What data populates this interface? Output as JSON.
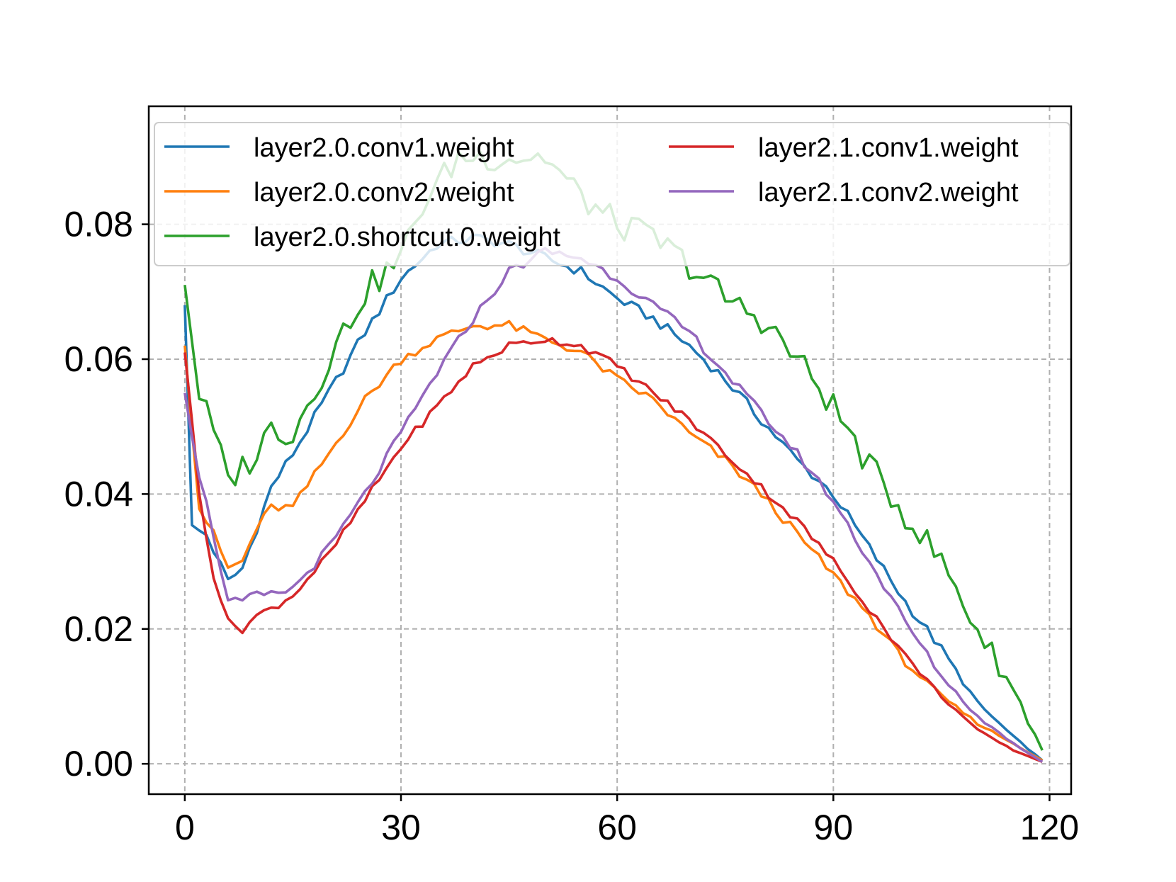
{
  "chart_data": {
    "type": "line",
    "title": "",
    "xlabel": "",
    "ylabel": "",
    "xlim": [
      -5,
      123
    ],
    "ylim": [
      -0.0045,
      0.0975
    ],
    "xticks": [
      0,
      30,
      60,
      90,
      120
    ],
    "yticks": [
      0.0,
      0.02,
      0.04,
      0.06,
      0.08
    ],
    "xtick_labels": [
      "0",
      "30",
      "60",
      "90",
      "120"
    ],
    "ytick_labels": [
      "0.00",
      "0.02",
      "0.04",
      "0.06",
      "0.08"
    ],
    "grid": true,
    "legend_location": "upper, two columns",
    "x_range": [
      0,
      119
    ],
    "series": [
      {
        "name": "layer2.0.conv1.weight",
        "color": "#1f77b4",
        "keypoints": [
          [
            0,
            0.068
          ],
          [
            1,
            0.035
          ],
          [
            3,
            0.034
          ],
          [
            6,
            0.027
          ],
          [
            8,
            0.029
          ],
          [
            10,
            0.035
          ],
          [
            12,
            0.041
          ],
          [
            15,
            0.046
          ],
          [
            20,
            0.055
          ],
          [
            25,
            0.064
          ],
          [
            30,
            0.072
          ],
          [
            35,
            0.077
          ],
          [
            40,
            0.078
          ],
          [
            45,
            0.077
          ],
          [
            50,
            0.075
          ],
          [
            55,
            0.073
          ],
          [
            60,
            0.069
          ],
          [
            65,
            0.066
          ],
          [
            70,
            0.062
          ],
          [
            75,
            0.057
          ],
          [
            80,
            0.051
          ],
          [
            85,
            0.045
          ],
          [
            90,
            0.04
          ],
          [
            95,
            0.032
          ],
          [
            100,
            0.024
          ],
          [
            105,
            0.017
          ],
          [
            110,
            0.009
          ],
          [
            115,
            0.004
          ],
          [
            119,
            0.0005
          ]
        ]
      },
      {
        "name": "layer2.0.conv2.weight",
        "color": "#ff7f0e",
        "keypoints": [
          [
            0,
            0.062
          ],
          [
            2,
            0.038
          ],
          [
            4,
            0.034
          ],
          [
            6,
            0.029
          ],
          [
            8,
            0.03
          ],
          [
            10,
            0.035
          ],
          [
            12,
            0.038
          ],
          [
            15,
            0.038
          ],
          [
            20,
            0.046
          ],
          [
            25,
            0.054
          ],
          [
            30,
            0.06
          ],
          [
            35,
            0.063
          ],
          [
            40,
            0.065
          ],
          [
            45,
            0.065
          ],
          [
            50,
            0.063
          ],
          [
            55,
            0.061
          ],
          [
            60,
            0.057
          ],
          [
            65,
            0.054
          ],
          [
            70,
            0.049
          ],
          [
            75,
            0.045
          ],
          [
            80,
            0.04
          ],
          [
            85,
            0.034
          ],
          [
            90,
            0.028
          ],
          [
            95,
            0.022
          ],
          [
            100,
            0.015
          ],
          [
            105,
            0.01
          ],
          [
            110,
            0.006
          ],
          [
            115,
            0.003
          ],
          [
            119,
            0.0005
          ]
        ]
      },
      {
        "name": "layer2.0.shortcut.0.weight",
        "color": "#2ca02c",
        "keypoints": [
          [
            0,
            0.071
          ],
          [
            2,
            0.055
          ],
          [
            4,
            0.049
          ],
          [
            6,
            0.042
          ],
          [
            8,
            0.044
          ],
          [
            10,
            0.046
          ],
          [
            12,
            0.05
          ],
          [
            15,
            0.049
          ],
          [
            20,
            0.06
          ],
          [
            25,
            0.07
          ],
          [
            30,
            0.075
          ],
          [
            33,
            0.083
          ],
          [
            38,
            0.09
          ],
          [
            42,
            0.09
          ],
          [
            46,
            0.09
          ],
          [
            50,
            0.09
          ],
          [
            55,
            0.084
          ],
          [
            60,
            0.08
          ],
          [
            65,
            0.078
          ],
          [
            70,
            0.074
          ],
          [
            75,
            0.069
          ],
          [
            80,
            0.066
          ],
          [
            85,
            0.06
          ],
          [
            90,
            0.053
          ],
          [
            95,
            0.044
          ],
          [
            100,
            0.037
          ],
          [
            105,
            0.03
          ],
          [
            110,
            0.02
          ],
          [
            115,
            0.011
          ],
          [
            119,
            0.002
          ]
        ]
      },
      {
        "name": "layer2.1.conv1.weight",
        "color": "#d62728",
        "keypoints": [
          [
            0,
            0.061
          ],
          [
            2,
            0.04
          ],
          [
            4,
            0.028
          ],
          [
            6,
            0.021
          ],
          [
            8,
            0.02
          ],
          [
            10,
            0.022
          ],
          [
            12,
            0.023
          ],
          [
            15,
            0.025
          ],
          [
            20,
            0.031
          ],
          [
            25,
            0.039
          ],
          [
            30,
            0.047
          ],
          [
            35,
            0.053
          ],
          [
            40,
            0.059
          ],
          [
            45,
            0.062
          ],
          [
            50,
            0.063
          ],
          [
            55,
            0.062
          ],
          [
            60,
            0.059
          ],
          [
            65,
            0.055
          ],
          [
            70,
            0.051
          ],
          [
            75,
            0.046
          ],
          [
            80,
            0.041
          ],
          [
            85,
            0.036
          ],
          [
            90,
            0.03
          ],
          [
            95,
            0.023
          ],
          [
            100,
            0.016
          ],
          [
            105,
            0.01
          ],
          [
            110,
            0.005
          ],
          [
            115,
            0.002
          ],
          [
            119,
            0.0003
          ]
        ]
      },
      {
        "name": "layer2.1.conv2.weight",
        "color": "#9467bd",
        "keypoints": [
          [
            0,
            0.055
          ],
          [
            2,
            0.043
          ],
          [
            4,
            0.034
          ],
          [
            6,
            0.024
          ],
          [
            8,
            0.024
          ],
          [
            10,
            0.025
          ],
          [
            12,
            0.025
          ],
          [
            15,
            0.026
          ],
          [
            20,
            0.032
          ],
          [
            25,
            0.04
          ],
          [
            30,
            0.049
          ],
          [
            35,
            0.058
          ],
          [
            40,
            0.066
          ],
          [
            45,
            0.073
          ],
          [
            50,
            0.076
          ],
          [
            55,
            0.075
          ],
          [
            60,
            0.072
          ],
          [
            65,
            0.068
          ],
          [
            70,
            0.064
          ],
          [
            75,
            0.058
          ],
          [
            80,
            0.052
          ],
          [
            85,
            0.046
          ],
          [
            90,
            0.039
          ],
          [
            95,
            0.03
          ],
          [
            100,
            0.021
          ],
          [
            105,
            0.013
          ],
          [
            110,
            0.007
          ],
          [
            115,
            0.003
          ],
          [
            119,
            0.0003
          ]
        ]
      }
    ]
  }
}
